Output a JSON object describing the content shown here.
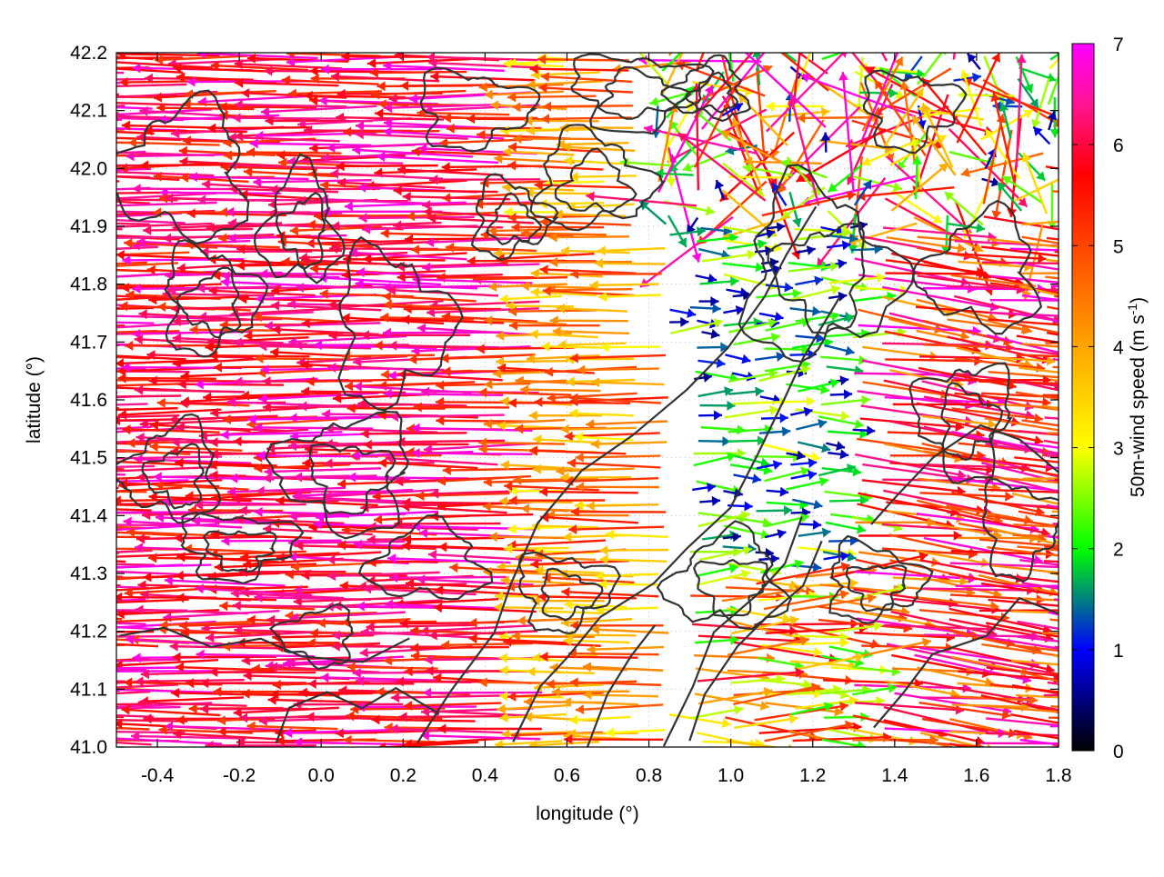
{
  "chart_data": {
    "type": "vector-field",
    "xlabel": "longitude (°)",
    "ylabel": "latitude (°)",
    "colorbar_label_main": "50m-wind speed (m s",
    "colorbar_label_sup": "-1",
    "colorbar_label_close": ")",
    "xlim": [
      -0.5,
      1.8
    ],
    "ylim": [
      41.0,
      42.2
    ],
    "colorbar_range": [
      0,
      7
    ],
    "grid": true,
    "xticks": [
      -0.4,
      -0.2,
      0.0,
      0.2,
      0.4,
      0.6,
      0.8,
      1.0,
      1.2,
      1.4,
      1.6,
      1.8
    ],
    "xtick_labels": [
      "-0.4",
      "-0.2",
      "0.0",
      "0.2",
      "0.4",
      "0.6",
      "0.8",
      "1.0",
      "1.2",
      "1.4",
      "1.6",
      "1.8"
    ],
    "yticks": [
      41.0,
      41.1,
      41.2,
      41.3,
      41.4,
      41.5,
      41.6,
      41.7,
      41.8,
      41.9,
      42.0,
      42.1,
      42.2
    ],
    "ytick_labels": [
      "41.0",
      "41.1",
      "41.2",
      "41.3",
      "41.4",
      "41.5",
      "41.6",
      "41.7",
      "41.8",
      "41.9",
      "42.0",
      "42.1",
      "42.2"
    ],
    "cbticks": [
      0,
      1,
      2,
      3,
      4,
      5,
      6,
      7
    ],
    "cbtick_labels": [
      "0",
      "1",
      "2",
      "3",
      "4",
      "5",
      "6",
      "7"
    ],
    "colormap": [
      {
        "v": 0.0,
        "color": "#000000"
      },
      {
        "v": 1.0,
        "color": "#0000ff"
      },
      {
        "v": 1.5,
        "color": "#008080"
      },
      {
        "v": 2.0,
        "color": "#00ff00"
      },
      {
        "v": 3.0,
        "color": "#ffff00"
      },
      {
        "v": 4.0,
        "color": "#ffa500"
      },
      {
        "v": 5.0,
        "color": "#ff4500"
      },
      {
        "v": 5.7,
        "color": "#ff0000"
      },
      {
        "v": 6.4,
        "color": "#ff1493"
      },
      {
        "v": 7.0,
        "color": "#ff00ff"
      }
    ],
    "contour_color": "#333333",
    "grid_color": "#b0b0b0",
    "wind_field_note": "",
    "wind_regions": [
      {
        "lon_range": [
          -0.5,
          0.55
        ],
        "lat_range": [
          41.0,
          42.2
        ],
        "direction": "west",
        "speed": [
          5.0,
          7.0
        ]
      },
      {
        "lon_range": [
          0.55,
          0.85
        ],
        "lat_range": [
          41.0,
          42.2
        ],
        "direction": "west",
        "speed": [
          3.0,
          5.5
        ]
      },
      {
        "lon_range": [
          0.85,
          1.3
        ],
        "lat_range": [
          41.3,
          42.0
        ],
        "direction": "east",
        "speed": [
          0.5,
          3.0
        ]
      },
      {
        "lon_range": [
          1.3,
          1.8
        ],
        "lat_range": [
          41.0,
          41.8
        ],
        "direction": "east-southeast",
        "speed": [
          4.0,
          7.0
        ]
      },
      {
        "lon_range": [
          0.8,
          1.8
        ],
        "lat_range": [
          41.9,
          42.2
        ],
        "direction": "mixed",
        "speed": [
          0.5,
          7.0
        ]
      }
    ]
  }
}
